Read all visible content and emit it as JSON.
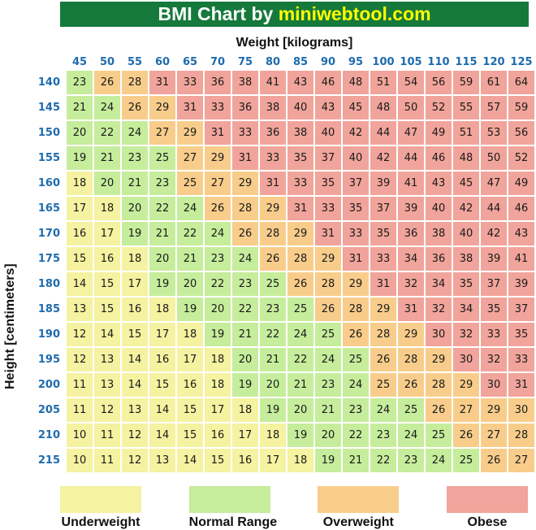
{
  "title": {
    "prefix": "BMI Chart by ",
    "brand": "miniwebtool.com"
  },
  "axes": {
    "x_label": "Weight [kilograms]",
    "y_label": "Height [centimeters]"
  },
  "colors": {
    "title_bg": "#15793B",
    "title_text": "#FFFFFF",
    "brand_text": "#FFFF00",
    "header_text": "#1E6BAE",
    "cell_text": "#1A1A1A",
    "underweight": "#F5F2A1",
    "normal": "#C6ED9C",
    "overweight": "#F8CD8B",
    "obese": "#F1A49B"
  },
  "legend": {
    "items": [
      {
        "label": "Underweight",
        "key": "u"
      },
      {
        "label": "Normal Range",
        "key": "n"
      },
      {
        "label": "Overweight",
        "key": "o"
      },
      {
        "label": "Obese",
        "key": "b"
      }
    ]
  },
  "chart_data": {
    "type": "heatmap",
    "title": "BMI Chart by miniwebtool.com",
    "xlabel": "Weight [kilograms]",
    "ylabel": "Height [centimeters]",
    "x": [
      45,
      50,
      55,
      60,
      65,
      70,
      75,
      80,
      85,
      90,
      95,
      100,
      105,
      110,
      115,
      120,
      125
    ],
    "y": [
      140,
      145,
      150,
      155,
      160,
      165,
      170,
      175,
      180,
      185,
      190,
      195,
      200,
      205,
      210,
      215
    ],
    "values": [
      [
        23,
        26,
        28,
        31,
        33,
        36,
        38,
        41,
        43,
        46,
        48,
        51,
        54,
        56,
        59,
        61,
        64
      ],
      [
        21,
        24,
        26,
        29,
        31,
        33,
        36,
        38,
        40,
        43,
        45,
        48,
        50,
        52,
        55,
        57,
        59
      ],
      [
        20,
        22,
        24,
        27,
        29,
        31,
        33,
        36,
        38,
        40,
        42,
        44,
        47,
        49,
        51,
        53,
        56
      ],
      [
        19,
        21,
        23,
        25,
        27,
        29,
        31,
        33,
        35,
        37,
        40,
        42,
        44,
        46,
        48,
        50,
        52
      ],
      [
        18,
        20,
        21,
        23,
        25,
        27,
        29,
        31,
        33,
        35,
        37,
        39,
        41,
        43,
        45,
        47,
        49
      ],
      [
        17,
        18,
        20,
        22,
        24,
        26,
        28,
        29,
        31,
        33,
        35,
        37,
        39,
        40,
        42,
        44,
        46
      ],
      [
        16,
        17,
        19,
        21,
        22,
        24,
        26,
        28,
        29,
        31,
        33,
        35,
        36,
        38,
        40,
        42,
        43
      ],
      [
        15,
        16,
        18,
        20,
        21,
        23,
        24,
        26,
        28,
        29,
        31,
        33,
        34,
        36,
        38,
        39,
        41
      ],
      [
        14,
        15,
        17,
        19,
        20,
        22,
        23,
        25,
        26,
        28,
        29,
        31,
        32,
        34,
        35,
        37,
        39
      ],
      [
        13,
        15,
        16,
        18,
        19,
        20,
        22,
        23,
        25,
        26,
        28,
        29,
        31,
        32,
        34,
        35,
        37
      ],
      [
        12,
        14,
        15,
        17,
        18,
        19,
        21,
        22,
        24,
        25,
        26,
        28,
        29,
        30,
        32,
        33,
        35
      ],
      [
        12,
        13,
        14,
        16,
        17,
        18,
        20,
        21,
        22,
        24,
        25,
        26,
        28,
        29,
        30,
        32,
        33
      ],
      [
        11,
        13,
        14,
        15,
        16,
        18,
        19,
        20,
        21,
        23,
        24,
        25,
        26,
        28,
        29,
        30,
        31
      ],
      [
        11,
        12,
        13,
        14,
        15,
        17,
        18,
        19,
        20,
        21,
        23,
        24,
        25,
        26,
        27,
        29,
        30
      ],
      [
        10,
        11,
        12,
        14,
        15,
        16,
        17,
        18,
        19,
        20,
        22,
        23,
        24,
        25,
        26,
        27,
        28
      ],
      [
        10,
        11,
        12,
        13,
        14,
        15,
        16,
        17,
        18,
        19,
        21,
        22,
        23,
        24,
        25,
        26,
        27
      ]
    ],
    "categories": [
      [
        "n",
        "o",
        "o",
        "b",
        "b",
        "b",
        "b",
        "b",
        "b",
        "b",
        "b",
        "b",
        "b",
        "b",
        "b",
        "b",
        "b"
      ],
      [
        "n",
        "n",
        "o",
        "o",
        "b",
        "b",
        "b",
        "b",
        "b",
        "b",
        "b",
        "b",
        "b",
        "b",
        "b",
        "b",
        "b"
      ],
      [
        "n",
        "n",
        "n",
        "o",
        "o",
        "b",
        "b",
        "b",
        "b",
        "b",
        "b",
        "b",
        "b",
        "b",
        "b",
        "b",
        "b"
      ],
      [
        "n",
        "n",
        "n",
        "n",
        "o",
        "o",
        "b",
        "b",
        "b",
        "b",
        "b",
        "b",
        "b",
        "b",
        "b",
        "b",
        "b"
      ],
      [
        "u",
        "n",
        "n",
        "n",
        "o",
        "o",
        "o",
        "b",
        "b",
        "b",
        "b",
        "b",
        "b",
        "b",
        "b",
        "b",
        "b"
      ],
      [
        "u",
        "u",
        "n",
        "n",
        "n",
        "o",
        "o",
        "o",
        "b",
        "b",
        "b",
        "b",
        "b",
        "b",
        "b",
        "b",
        "b"
      ],
      [
        "u",
        "u",
        "n",
        "n",
        "n",
        "n",
        "o",
        "o",
        "o",
        "b",
        "b",
        "b",
        "b",
        "b",
        "b",
        "b",
        "b"
      ],
      [
        "u",
        "u",
        "u",
        "n",
        "n",
        "n",
        "n",
        "o",
        "o",
        "o",
        "b",
        "b",
        "b",
        "b",
        "b",
        "b",
        "b"
      ],
      [
        "u",
        "u",
        "u",
        "n",
        "n",
        "n",
        "n",
        "n",
        "o",
        "o",
        "o",
        "b",
        "b",
        "b",
        "b",
        "b",
        "b"
      ],
      [
        "u",
        "u",
        "u",
        "u",
        "n",
        "n",
        "n",
        "n",
        "n",
        "o",
        "o",
        "o",
        "b",
        "b",
        "b",
        "b",
        "b"
      ],
      [
        "u",
        "u",
        "u",
        "u",
        "u",
        "n",
        "n",
        "n",
        "n",
        "n",
        "o",
        "o",
        "o",
        "b",
        "b",
        "b",
        "b"
      ],
      [
        "u",
        "u",
        "u",
        "u",
        "u",
        "u",
        "n",
        "n",
        "n",
        "n",
        "n",
        "o",
        "o",
        "o",
        "b",
        "b",
        "b"
      ],
      [
        "u",
        "u",
        "u",
        "u",
        "u",
        "u",
        "n",
        "n",
        "n",
        "n",
        "n",
        "o",
        "o",
        "o",
        "o",
        "b",
        "b"
      ],
      [
        "u",
        "u",
        "u",
        "u",
        "u",
        "u",
        "u",
        "n",
        "n",
        "n",
        "n",
        "n",
        "n",
        "o",
        "o",
        "o",
        "o"
      ],
      [
        "u",
        "u",
        "u",
        "u",
        "u",
        "u",
        "u",
        "u",
        "n",
        "n",
        "n",
        "n",
        "n",
        "n",
        "o",
        "o",
        "o"
      ],
      [
        "u",
        "u",
        "u",
        "u",
        "u",
        "u",
        "u",
        "u",
        "u",
        "n",
        "n",
        "n",
        "n",
        "n",
        "n",
        "o",
        "o"
      ]
    ],
    "category_key": {
      "u": "Underweight",
      "n": "Normal Range",
      "o": "Overweight",
      "b": "Obese"
    },
    "legend_position": "bottom",
    "grid": false
  }
}
